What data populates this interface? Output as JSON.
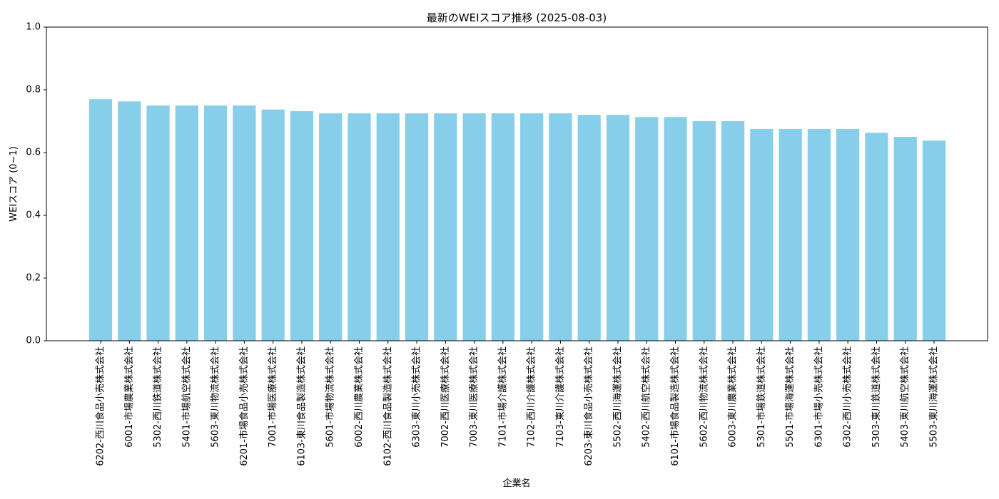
{
  "chart_data": {
    "type": "bar",
    "title": "最新のWEIスコア推移 (2025-08-03)",
    "xlabel": "企業名",
    "ylabel": "WEIスコア (0~1)",
    "ylim": [
      0,
      1
    ],
    "yticks": [
      "0.0",
      "0.2",
      "0.4",
      "0.6",
      "0.8",
      "1.0"
    ],
    "grid": false,
    "bar_color": "#87ceeb",
    "categories": [
      "6202-西川食品小売株式会社",
      "6001-市場農業株式会社",
      "5302-西川鉄道株式会社",
      "5401-市場航空株式会社",
      "5603-東川物流株式会社",
      "6201-市場食品小売株式会社",
      "7001-市場医療株式会社",
      "6103-東川食品製造株式会社",
      "5601-市場物流株式会社",
      "6002-西川農業株式会社",
      "6102-西川食品製造株式会社",
      "6303-東川小売株式会社",
      "7002-西川医療株式会社",
      "7003-東川医療株式会社",
      "7101-市場介護株式会社",
      "7102-西川介護株式会社",
      "7103-東川介護株式会社",
      "6203-東川食品小売株式会社",
      "5502-西川海運株式会社",
      "5402-西川航空株式会社",
      "6101-市場食品製造株式会社",
      "5602-西川物流株式会社",
      "6003-東川農業株式会社",
      "5301-市場鉄道株式会社",
      "5501-市場海運株式会社",
      "6301-市場小売株式会社",
      "6302-西川小売株式会社",
      "5303-東川鉄道株式会社",
      "5403-東川航空株式会社",
      "5503-東川海運株式会社"
    ],
    "values": [
      0.77,
      0.763,
      0.75,
      0.75,
      0.75,
      0.75,
      0.737,
      0.732,
      0.725,
      0.725,
      0.725,
      0.725,
      0.725,
      0.725,
      0.725,
      0.725,
      0.725,
      0.72,
      0.72,
      0.713,
      0.713,
      0.7,
      0.7,
      0.675,
      0.675,
      0.675,
      0.675,
      0.663,
      0.65,
      0.638
    ]
  }
}
